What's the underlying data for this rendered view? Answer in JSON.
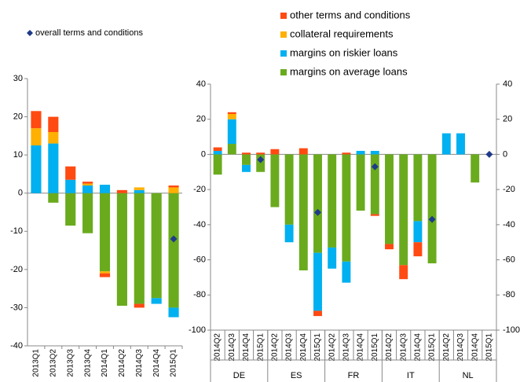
{
  "chart_data": [
    {
      "type": "bar",
      "stacked": true,
      "categories": [
        "2013Q1",
        "2013Q2",
        "2013Q3",
        "2013Q4",
        "2014Q1",
        "2014Q2",
        "2014Q3",
        "2014Q4",
        "2015Q1"
      ],
      "ylim": [
        -40,
        30
      ],
      "yticks": [
        -40,
        -30,
        -20,
        -10,
        0,
        10,
        20,
        30
      ],
      "series": [
        {
          "name": "margins on average loans",
          "color": "#6aab1e",
          "values": [
            0,
            -2.5,
            -8.5,
            -10.5,
            -20.5,
            -29.5,
            -29,
            -27.5,
            -30
          ]
        },
        {
          "name": "margins on riskier loans",
          "color": "#00b0f0",
          "values": [
            12.5,
            13,
            3.5,
            2,
            2.2,
            0,
            0.8,
            -1.5,
            -2.5
          ]
        },
        {
          "name": "collateral requirements",
          "color": "#ffb000",
          "values": [
            4.5,
            3,
            0,
            0.5,
            -0.5,
            0,
            0.7,
            0,
            1.5
          ]
        },
        {
          "name": "other terms and conditions",
          "color": "#ff4a12",
          "values": [
            4.5,
            4,
            3.5,
            0.5,
            -1,
            0.8,
            -1,
            0,
            0.5
          ]
        },
        {
          "name": "overall terms and conditions",
          "color": "#1f3a8a",
          "marker": "diamond",
          "values": [
            null,
            null,
            null,
            null,
            null,
            null,
            null,
            null,
            -12
          ]
        }
      ]
    },
    {
      "type": "bar",
      "stacked": true,
      "categories": [
        "2014Q2",
        "2014Q3",
        "2014Q4",
        "2015Q1",
        "2014Q2",
        "2014Q3",
        "2014Q4",
        "2015Q1",
        "2014Q2",
        "2014Q3",
        "2014Q4",
        "2015Q1",
        "2014Q2",
        "2014Q3",
        "2014Q4",
        "2015Q1",
        "2014Q2",
        "2014Q3",
        "2014Q4",
        "2015Q1"
      ],
      "groups": [
        "DE",
        "ES",
        "FR",
        "IT",
        "NL"
      ],
      "ylim": [
        -100,
        40
      ],
      "yticks": [
        -100,
        -80,
        -60,
        -40,
        -20,
        0,
        20,
        40
      ],
      "y2lim": [
        -100,
        40
      ],
      "y2ticks": [
        -100,
        -80,
        -60,
        -40,
        -20,
        0,
        20,
        40
      ],
      "series": [
        {
          "values": [
            -11.5,
            6,
            -6,
            -10,
            -30,
            -40,
            -66,
            -56,
            -53,
            -61,
            -32,
            -34,
            -51,
            -63,
            -38,
            -62,
            0,
            0,
            -16,
            0
          ]
        },
        {
          "values": [
            2,
            14,
            -4,
            0,
            0,
            -10,
            0,
            -33,
            -12,
            -12,
            2,
            2,
            0,
            0,
            -12,
            0,
            12,
            12,
            0,
            0
          ]
        },
        {
          "values": [
            0,
            3,
            0,
            0,
            0,
            0,
            0,
            0,
            0,
            0,
            0,
            0,
            0,
            0,
            0,
            0,
            0,
            0,
            0,
            0
          ]
        },
        {
          "values": [
            2,
            1,
            1,
            1,
            3,
            0,
            3.5,
            -3,
            0,
            1,
            0,
            -1,
            -3,
            -8,
            -8,
            0,
            0,
            0,
            0,
            0
          ]
        },
        {
          "values": [
            null,
            null,
            null,
            -3,
            null,
            null,
            null,
            -33,
            null,
            null,
            null,
            -7,
            null,
            null,
            null,
            -37,
            null,
            null,
            null,
            0
          ]
        }
      ]
    }
  ]
}
